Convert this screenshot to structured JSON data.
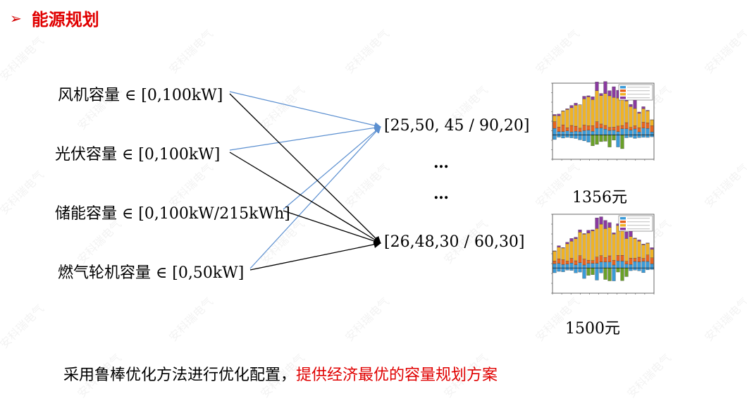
{
  "header": {
    "bullet": "➢",
    "title": "能源规划"
  },
  "inputs": [
    {
      "label": "风机容量 ∈ [0,100kW]"
    },
    {
      "label": "光伏容量 ∈ [0,100kW]"
    },
    {
      "label": "储能容量 ∈ [0,100kW/215kWh]"
    },
    {
      "label": "燃气轮机容量 ∈ [0,50kW]"
    }
  ],
  "outputs": [
    {
      "vector": "[25,50, 45 / 90,20]"
    },
    {
      "vector": "[26,48,30 / 60,30]"
    }
  ],
  "ellipsis": [
    "…",
    "…"
  ],
  "results": [
    {
      "price": "1356元"
    },
    {
      "price": "1500元"
    }
  ],
  "footer": {
    "normal": "采用鲁棒优化方法进行优化配置，",
    "highlight": "提供经济最优的容量规划方案"
  },
  "colors": {
    "title": "#e00000",
    "blue_arrow": "#5b8fd0",
    "black_arrow": "#000000",
    "bar_blue": "#3a9bd8",
    "bar_orange": "#e8641c",
    "bar_gold": "#f0b325",
    "bar_purple": "#8a3aa0",
    "bar_green": "#6aa028"
  },
  "watermark": "安科瑞电气"
}
